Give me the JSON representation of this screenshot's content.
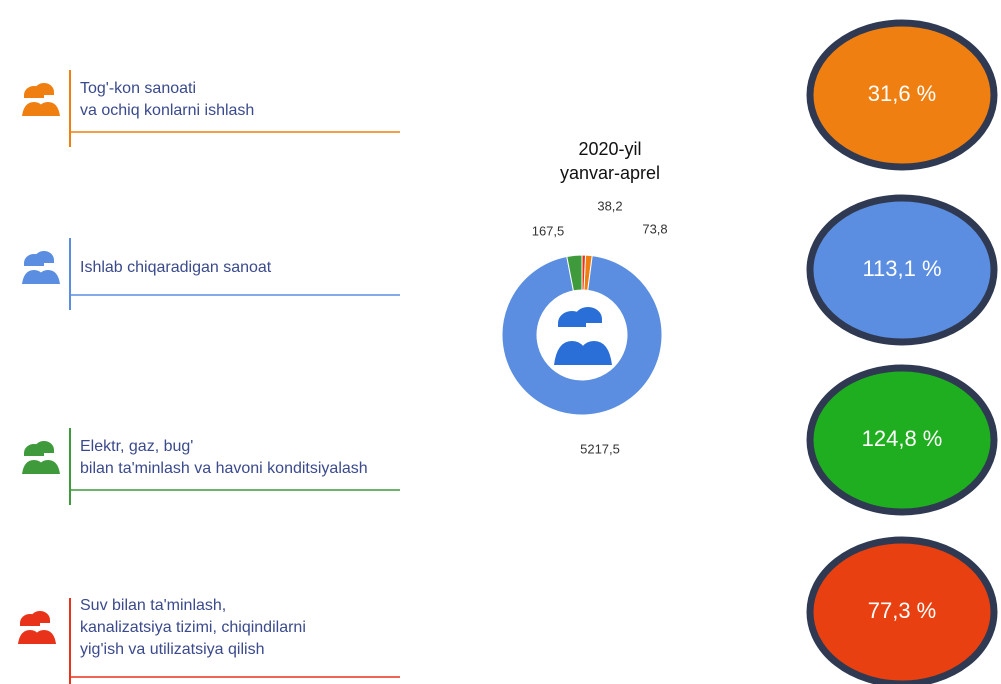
{
  "chart_data": {
    "type": "pie",
    "title": "2020-yil",
    "subtitle": "yanvar-aprel",
    "categories": [
      "Tog'-kon sanoati va ochiq konlarni ishlash",
      "Ishlab chiqaradigan sanoat",
      "Elektr, gaz, bug' bilan ta'minlash va havoni konditsiyalash",
      "Suv bilan ta'minlash, kanalizatsiya tizimi, chiqindilarni yig'ish va utilizatsiya qilish"
    ],
    "values": [
      73.8,
      5217.5,
      167.5,
      38.2
    ],
    "value_labels": [
      "73,8",
      "5217,5",
      "167,5",
      "38,2"
    ],
    "colors": [
      "#f07f12",
      "#5b8ee0",
      "#3f9a3c",
      "#e8321a"
    ],
    "growth_values": [
      31.6,
      113.1,
      124.8,
      77.3
    ],
    "growth_labels": [
      "31,6 %",
      "113,1  %",
      "124,8  %",
      "77,3  %"
    ],
    "growth_colors": [
      "#f07f12",
      "#5b8ee0",
      "#1fae1f",
      "#e84010"
    ]
  }
}
